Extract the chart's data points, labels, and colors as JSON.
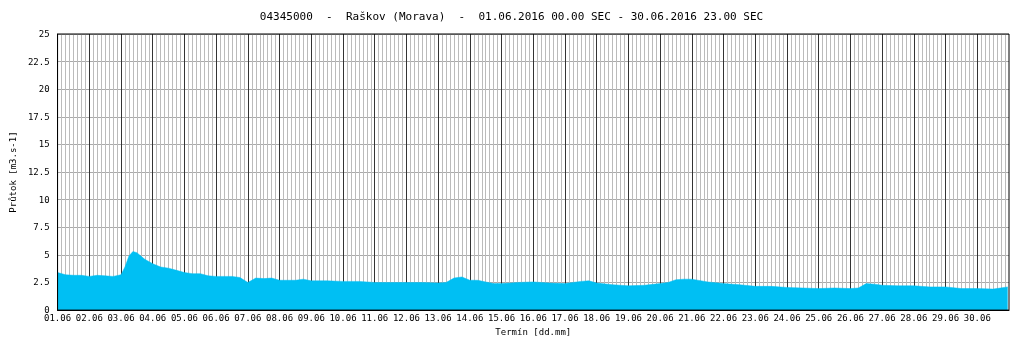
{
  "chart_data": {
    "type": "area",
    "title": "04345000  -  Raškov (Morava)  -  01.06.2016 00.00 SEC - 30.06.2016 23.00 SEC",
    "xlabel": "Termín [dd.mm]",
    "ylabel": "Průtok [m3.s-1]",
    "x": [
      "2016-06-01T00:00",
      "2016-06-01T06:00",
      "2016-06-01T12:00",
      "2016-06-01T18:00",
      "2016-06-02T00:00",
      "2016-06-02T06:00",
      "2016-06-02T12:00",
      "2016-06-02T18:00",
      "2016-06-03T00:00",
      "2016-06-03T03:00",
      "2016-06-03T06:00",
      "2016-06-03T09:00",
      "2016-06-03T12:00",
      "2016-06-03T18:00",
      "2016-06-04T00:00",
      "2016-06-04T06:00",
      "2016-06-04T12:00",
      "2016-06-04T18:00",
      "2016-06-05T00:00",
      "2016-06-05T06:00",
      "2016-06-05T12:00",
      "2016-06-05T18:00",
      "2016-06-06T00:00",
      "2016-06-06T06:00",
      "2016-06-06T12:00",
      "2016-06-06T18:00",
      "2016-06-07T00:00",
      "2016-06-07T06:00",
      "2016-06-07T12:00",
      "2016-06-07T18:00",
      "2016-06-08T00:00",
      "2016-06-08T12:00",
      "2016-06-08T18:00",
      "2016-06-09T00:00",
      "2016-06-09T12:00",
      "2016-06-10T00:00",
      "2016-06-10T12:00",
      "2016-06-11T00:00",
      "2016-06-11T12:00",
      "2016-06-12T00:00",
      "2016-06-12T12:00",
      "2016-06-13T00:00",
      "2016-06-13T06:00",
      "2016-06-13T12:00",
      "2016-06-13T18:00",
      "2016-06-14T00:00",
      "2016-06-14T06:00",
      "2016-06-14T12:00",
      "2016-06-14T18:00",
      "2016-06-15T00:00",
      "2016-06-15T12:00",
      "2016-06-16T00:00",
      "2016-06-16T12:00",
      "2016-06-17T00:00",
      "2016-06-17T12:00",
      "2016-06-17T18:00",
      "2016-06-18T00:00",
      "2016-06-18T12:00",
      "2016-06-19T00:00",
      "2016-06-19T12:00",
      "2016-06-20T00:00",
      "2016-06-20T06:00",
      "2016-06-20T12:00",
      "2016-06-20T18:00",
      "2016-06-21T00:00",
      "2016-06-21T12:00",
      "2016-06-22T00:00",
      "2016-06-22T12:00",
      "2016-06-23T00:00",
      "2016-06-23T12:00",
      "2016-06-24T00:00",
      "2016-06-24T12:00",
      "2016-06-25T00:00",
      "2016-06-25T12:00",
      "2016-06-26T00:00",
      "2016-06-26T06:00",
      "2016-06-26T12:00",
      "2016-06-26T18:00",
      "2016-06-27T00:00",
      "2016-06-27T12:00",
      "2016-06-28T00:00",
      "2016-06-28T12:00",
      "2016-06-29T00:00",
      "2016-06-29T12:00",
      "2016-06-30T00:00",
      "2016-06-30T12:00",
      "2016-06-30T23:00"
    ],
    "series": [
      {
        "color": "#00bff3",
        "values": [
          3.4,
          3.2,
          3.15,
          3.15,
          3.05,
          3.15,
          3.1,
          3.05,
          3.2,
          3.9,
          4.9,
          5.3,
          5.2,
          4.6,
          4.2,
          3.9,
          3.8,
          3.6,
          3.4,
          3.3,
          3.3,
          3.1,
          3.05,
          3.05,
          3.05,
          2.95,
          2.5,
          2.9,
          2.85,
          2.9,
          2.7,
          2.7,
          2.8,
          2.65,
          2.65,
          2.6,
          2.6,
          2.5,
          2.5,
          2.5,
          2.5,
          2.45,
          2.5,
          2.9,
          3.0,
          2.7,
          2.7,
          2.55,
          2.4,
          2.4,
          2.5,
          2.55,
          2.45,
          2.4,
          2.6,
          2.65,
          2.45,
          2.3,
          2.2,
          2.25,
          2.4,
          2.5,
          2.75,
          2.8,
          2.8,
          2.55,
          2.4,
          2.3,
          2.15,
          2.15,
          2.05,
          2.0,
          1.95,
          2.0,
          1.95,
          2.0,
          2.4,
          2.35,
          2.25,
          2.2,
          2.2,
          2.1,
          2.1,
          1.95,
          1.95,
          1.9,
          2.1
        ]
      }
    ],
    "xlim": [
      "2016-06-01T00:00",
      "2016-07-01T00:00"
    ],
    "xticks": [
      {
        "value": "2016-06-01T00:00",
        "label": "01.06"
      },
      {
        "value": "2016-06-02T00:00",
        "label": "02.06"
      },
      {
        "value": "2016-06-03T00:00",
        "label": "03.06"
      },
      {
        "value": "2016-06-04T00:00",
        "label": "04.06"
      },
      {
        "value": "2016-06-05T00:00",
        "label": "05.06"
      },
      {
        "value": "2016-06-06T00:00",
        "label": "06.06"
      },
      {
        "value": "2016-06-07T00:00",
        "label": "07.06"
      },
      {
        "value": "2016-06-08T00:00",
        "label": "08.06"
      },
      {
        "value": "2016-06-09T00:00",
        "label": "09.06"
      },
      {
        "value": "2016-06-10T00:00",
        "label": "10.06"
      },
      {
        "value": "2016-06-11T00:00",
        "label": "11.06"
      },
      {
        "value": "2016-06-12T00:00",
        "label": "12.06"
      },
      {
        "value": "2016-06-13T00:00",
        "label": "13.06"
      },
      {
        "value": "2016-06-14T00:00",
        "label": "14.06"
      },
      {
        "value": "2016-06-15T00:00",
        "label": "15.06"
      },
      {
        "value": "2016-06-16T00:00",
        "label": "16.06"
      },
      {
        "value": "2016-06-17T00:00",
        "label": "17.06"
      },
      {
        "value": "2016-06-18T00:00",
        "label": "18.06"
      },
      {
        "value": "2016-06-19T00:00",
        "label": "19.06"
      },
      {
        "value": "2016-06-20T00:00",
        "label": "20.06"
      },
      {
        "value": "2016-06-21T00:00",
        "label": "21.06"
      },
      {
        "value": "2016-06-22T00:00",
        "label": "22.06"
      },
      {
        "value": "2016-06-23T00:00",
        "label": "23.06"
      },
      {
        "value": "2016-06-24T00:00",
        "label": "24.06"
      },
      {
        "value": "2016-06-25T00:00",
        "label": "25.06"
      },
      {
        "value": "2016-06-26T00:00",
        "label": "26.06"
      },
      {
        "value": "2016-06-27T00:00",
        "label": "27.06"
      },
      {
        "value": "2016-06-28T00:00",
        "label": "28.06"
      },
      {
        "value": "2016-06-29T00:00",
        "label": "29.06"
      },
      {
        "value": "2016-06-30T00:00",
        "label": "30.06"
      }
    ],
    "ylim": [
      0,
      25
    ],
    "yticks": [
      0,
      2.5,
      5,
      7.5,
      10,
      12.5,
      15,
      17.5,
      20,
      22.5,
      25
    ],
    "grid": true,
    "marker": "none"
  }
}
